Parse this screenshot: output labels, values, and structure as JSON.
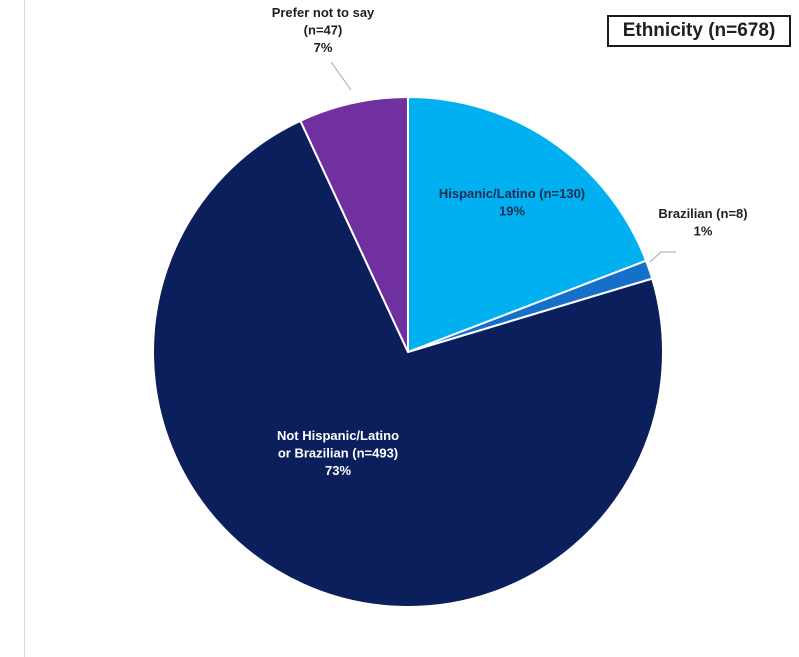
{
  "chart_data": {
    "type": "pie",
    "title": "Ethnicity (n=678)",
    "slices": [
      {
        "label_lines": [
          "Hispanic/Latino (n=130)",
          "19%"
        ],
        "category": "Hispanic/Latino",
        "n": 130,
        "percent": 19,
        "color": "#00b0f0",
        "label_color": "#1f2d50"
      },
      {
        "label_lines": [
          "Brazilian (n=8)",
          "1%"
        ],
        "category": "Brazilian",
        "n": 8,
        "percent": 1,
        "color": "#1470c8",
        "label_color": "#1f1f1f"
      },
      {
        "label_lines": [
          "Not Hispanic/Latino",
          "or Brazilian (n=493)",
          "73%"
        ],
        "category": "Not Hispanic/Latino or Brazilian",
        "n": 493,
        "percent": 73,
        "color": "#0b1f5c",
        "label_color": "#ffffff"
      },
      {
        "label_lines": [
          "Prefer not to say",
          "(n=47)",
          "7%"
        ],
        "category": "Prefer not to say",
        "n": 47,
        "percent": 7,
        "color": "#7030a0",
        "label_color": "#1f1f1f"
      }
    ]
  }
}
